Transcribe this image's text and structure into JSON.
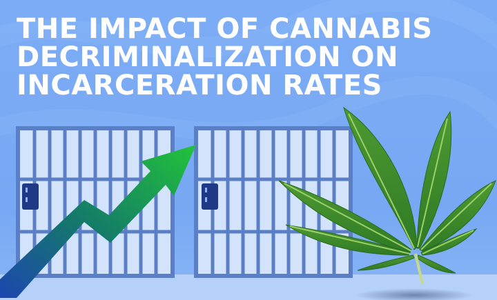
{
  "headline": {
    "line1": "THE IMPACT OF CANNABIS",
    "line2": "DECRIMINALIZATION ON",
    "line3": "INCARCERATION RATES"
  },
  "colors": {
    "background": "#7aaaf4",
    "cell_bars": "#5b7fc6",
    "cell_fill": "#d6e5fb",
    "arrow_start": "#1d4fb8",
    "arrow_end": "#1fbf3a",
    "leaf": "#3f8f2c",
    "text": "#ffffff"
  },
  "icons": [
    "jail-cell-door-icon",
    "growth-arrow-icon",
    "cannabis-leaf-icon",
    "door-lock-icon"
  ]
}
